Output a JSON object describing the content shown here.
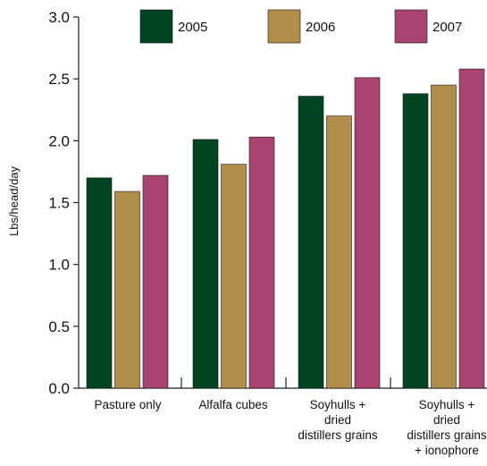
{
  "chart_data": {
    "type": "bar",
    "ylabel": "Lbs/head/day",
    "xlabel": "",
    "ylim": [
      0,
      3.0
    ],
    "yticks": [
      "0.0",
      "0.5",
      "1.0",
      "1.5",
      "2.0",
      "2.5",
      "3.0"
    ],
    "grid": false,
    "legend_position": "top",
    "categories": [
      [
        "Pasture only"
      ],
      [
        "Alfalfa cubes"
      ],
      [
        "Soyhulls +",
        "dried",
        "distillers grains"
      ],
      [
        "Soyhulls +",
        "dried",
        "distillers grains",
        "+ ionophore"
      ]
    ],
    "series": [
      {
        "name": "2005",
        "color": "#004422",
        "values": [
          1.7,
          2.01,
          2.36,
          2.38
        ]
      },
      {
        "name": "2006",
        "color": "#B08D48",
        "values": [
          1.59,
          1.81,
          2.2,
          2.45
        ]
      },
      {
        "name": "2007",
        "color": "#A8446F",
        "values": [
          1.72,
          2.03,
          2.51,
          2.58
        ]
      }
    ]
  }
}
